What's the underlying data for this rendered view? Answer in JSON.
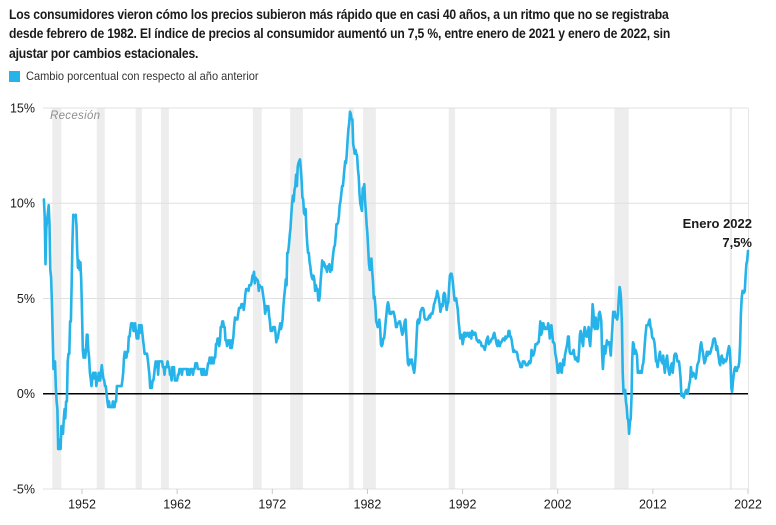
{
  "headline": {
    "lines": [
      "Los consumidores vieron cómo los precios subieron más rápido que en casi 40 años, a un ritmo que no se registraba",
      "desde febrero de 1982. El índice de precios al consumidor aumentó un 7,5 %, entre enero de 2021 y enero de 2022, sin",
      "ajustar por cambios estacionales."
    ]
  },
  "legend": {
    "label": "Cambio porcentual con respecto al año anterior",
    "swatch_color": "#25b3e9"
  },
  "chart_data": {
    "type": "line",
    "title": "Los consumidores vieron cómo los precios subieron más rápido que en casi 40 años, a un ritmo que no se registraba desde febrero de 1982. El índice de precios al consumidor aumentó un 7,5 %, entre enero de 2021 y enero de 2022, sin ajustar por cambios estacionales.",
    "xlabel": "",
    "ylabel": "Cambio porcentual con respecto al año anterior",
    "unit": "%",
    "ylim": [
      -5,
      15
    ],
    "xlim": [
      1947.9,
      2022.3
    ],
    "grid": true,
    "legend_position": "top-left",
    "recession_label": "Recesión",
    "recessions": [
      [
        1948.88,
        1949.83
      ],
      [
        1953.54,
        1954.38
      ],
      [
        1957.63,
        1958.29
      ],
      [
        1960.29,
        1961.13
      ],
      [
        1969.96,
        1970.88
      ],
      [
        1973.88,
        1975.21
      ],
      [
        1980.04,
        1980.54
      ],
      [
        1981.54,
        1982.88
      ],
      [
        1990.54,
        1991.21
      ],
      [
        2001.21,
        2001.88
      ],
      [
        2007.96,
        2009.46
      ],
      [
        2020.08,
        2020.33
      ]
    ],
    "yticks": [
      {
        "value": 15,
        "label": "15%"
      },
      {
        "value": 10,
        "label": "10%"
      },
      {
        "value": 5,
        "label": "5%"
      },
      {
        "value": 0,
        "label": "0%"
      },
      {
        "value": -5,
        "label": "-5%"
      }
    ],
    "xticks": [
      {
        "year": 1952,
        "label": "1952"
      },
      {
        "year": 1962,
        "label": "1962"
      },
      {
        "year": 1972,
        "label": "1972"
      },
      {
        "year": 1982,
        "label": "1982"
      },
      {
        "year": 1992,
        "label": "1992"
      },
      {
        "year": 2002,
        "label": "2002"
      },
      {
        "year": 2012,
        "label": "2012"
      },
      {
        "year": 2022,
        "label": "2022"
      }
    ],
    "annotation": {
      "lines": [
        "Enero 2022",
        "7,5%"
      ],
      "year": 2022.0,
      "value": 7.5
    },
    "colors": {
      "line": "#25b3e9",
      "recession": "#ededed",
      "grid": "#e0e0e0",
      "zero_line": "#000000",
      "tick": "#c8c8c8"
    },
    "series": [
      {
        "name": "Cambio porcentual con respecto al año anterior",
        "x_start_year": 1948,
        "x_step_months": 1,
        "values": [
          10.2,
          9.3,
          6.8,
          8.7,
          9.1,
          9.5,
          9.9,
          8.9,
          6.5,
          6.1,
          4.8,
          3.0,
          1.3,
          1.3,
          1.7,
          0.4,
          -0.4,
          -0.8,
          -2.9,
          -2.9,
          -2.4,
          -2.9,
          -1.7,
          -2.1,
          -2.1,
          -1.3,
          -0.8,
          -1.3,
          -0.4,
          -0.4,
          1.7,
          2.1,
          2.1,
          3.8,
          3.8,
          5.9,
          8.1,
          9.4,
          9.3,
          9.3,
          9.4,
          8.8,
          7.5,
          6.6,
          7.0,
          6.5,
          6.9,
          6.0,
          4.3,
          2.3,
          1.9,
          2.3,
          1.9,
          2.3,
          3.1,
          3.1,
          2.3,
          1.9,
          1.1,
          0.8,
          0.4,
          0.8,
          1.1,
          0.8,
          1.1,
          1.1,
          0.4,
          0.7,
          0.7,
          1.1,
          0.7,
          0.7,
          1.1,
          1.5,
          1.1,
          0.8,
          0.7,
          0.4,
          0.4,
          0.0,
          -0.4,
          -0.7,
          -0.4,
          -0.7,
          -0.7,
          -0.7,
          -0.7,
          -0.4,
          -0.7,
          -0.7,
          -0.4,
          -0.4,
          0.4,
          0.4,
          0.4,
          0.4,
          0.4,
          0.4,
          0.4,
          0.7,
          1.1,
          1.9,
          2.2,
          1.9,
          1.9,
          2.2,
          2.2,
          3.0,
          3.0,
          3.4,
          3.7,
          3.7,
          3.7,
          3.3,
          3.3,
          3.7,
          3.3,
          2.9,
          3.3,
          2.9,
          3.6,
          3.2,
          3.6,
          3.6,
          3.2,
          2.8,
          2.5,
          2.1,
          2.1,
          2.1,
          2.1,
          1.8,
          1.4,
          1.0,
          0.3,
          0.3,
          0.3,
          0.7,
          0.7,
          1.0,
          1.4,
          1.7,
          1.4,
          1.7,
          1.0,
          1.7,
          1.7,
          1.7,
          1.7,
          1.7,
          1.4,
          1.4,
          1.0,
          1.4,
          1.4,
          1.4,
          1.7,
          1.4,
          1.4,
          1.0,
          1.0,
          0.7,
          1.4,
          1.0,
          1.4,
          0.7,
          0.7,
          0.7,
          0.7,
          1.0,
          1.0,
          1.3,
          1.3,
          1.3,
          1.0,
          1.3,
          1.3,
          1.3,
          1.3,
          1.3,
          1.3,
          1.0,
          1.3,
          1.0,
          1.0,
          1.3,
          1.3,
          1.3,
          1.0,
          1.3,
          1.3,
          1.6,
          1.6,
          1.6,
          1.3,
          1.3,
          1.3,
          1.3,
          1.3,
          1.0,
          1.3,
          1.0,
          1.3,
          1.0,
          1.0,
          1.0,
          1.3,
          1.6,
          1.6,
          1.9,
          1.6,
          1.9,
          1.6,
          1.9,
          1.6,
          1.9,
          1.9,
          2.6,
          2.6,
          2.9,
          2.9,
          2.5,
          2.8,
          3.5,
          3.5,
          3.8,
          3.8,
          3.5,
          3.5,
          2.8,
          2.8,
          2.5,
          2.8,
          2.8,
          2.8,
          2.4,
          2.8,
          2.4,
          2.7,
          3.0,
          3.6,
          4.0,
          3.9,
          3.9,
          3.9,
          4.2,
          4.5,
          4.5,
          4.5,
          4.7,
          4.7,
          4.7,
          4.4,
          4.7,
          5.2,
          5.5,
          5.5,
          5.5,
          5.4,
          5.7,
          5.7,
          5.7,
          5.9,
          6.2,
          6.2,
          6.4,
          5.8,
          6.1,
          6.0,
          6.0,
          5.9,
          5.4,
          5.7,
          5.6,
          5.6,
          5.6,
          5.3,
          5.0,
          4.7,
          4.2,
          4.4,
          4.6,
          4.4,
          4.6,
          4.1,
          3.8,
          3.3,
          3.3,
          3.3,
          3.5,
          3.5,
          3.5,
          3.2,
          2.7,
          2.9,
          2.9,
          3.2,
          3.4,
          3.7,
          3.4,
          3.6,
          3.9,
          4.6,
          5.1,
          5.5,
          6.0,
          5.7,
          7.4,
          7.4,
          7.8,
          8.3,
          8.7,
          9.4,
          10.0,
          10.4,
          10.1,
          10.7,
          10.9,
          11.5,
          10.9,
          11.9,
          12.1,
          12.2,
          12.3,
          11.8,
          11.2,
          10.3,
          10.2,
          9.5,
          9.4,
          9.7,
          8.6,
          7.9,
          7.4,
          7.4,
          6.9,
          6.7,
          6.3,
          6.1,
          6.0,
          6.2,
          6.0,
          5.4,
          5.7,
          5.5,
          5.5,
          4.9,
          4.9,
          5.2,
          5.9,
          6.4,
          7.0,
          6.7,
          6.9,
          6.8,
          6.6,
          6.6,
          6.4,
          6.7,
          6.7,
          6.8,
          6.4,
          6.6,
          6.5,
          7.0,
          7.4,
          7.7,
          7.8,
          8.3,
          8.9,
          8.9,
          9.0,
          9.3,
          9.9,
          10.1,
          10.5,
          10.9,
          10.9,
          11.3,
          11.8,
          12.2,
          12.1,
          12.6,
          13.3,
          13.9,
          14.2,
          14.8,
          14.7,
          14.4,
          14.4,
          13.1,
          12.9,
          12.6,
          12.8,
          12.6,
          12.5,
          11.8,
          11.4,
          10.5,
          10.0,
          9.8,
          9.6,
          10.8,
          10.8,
          11.0,
          10.1,
          9.6,
          8.9,
          8.4,
          7.6,
          6.8,
          6.5,
          6.7,
          7.1,
          6.4,
          5.9,
          5.0,
          5.1,
          4.6,
          3.8,
          3.7,
          3.5,
          3.6,
          3.9,
          3.5,
          2.6,
          2.5,
          2.6,
          2.9,
          2.9,
          3.3,
          3.8,
          4.2,
          4.6,
          4.8,
          4.6,
          4.2,
          4.2,
          4.2,
          4.3,
          4.3,
          4.3,
          4.1,
          3.9,
          3.5,
          3.5,
          3.7,
          3.7,
          3.8,
          3.8,
          3.6,
          3.3,
          3.1,
          3.2,
          3.5,
          3.8,
          3.9,
          3.1,
          2.3,
          1.6,
          1.5,
          1.8,
          1.6,
          1.6,
          1.8,
          1.5,
          1.3,
          1.1,
          1.5,
          2.1,
          3.0,
          3.8,
          3.9,
          3.7,
          3.9,
          4.3,
          4.4,
          4.5,
          4.5,
          4.4,
          4.0,
          3.9,
          3.9,
          3.9,
          3.9,
          4.0,
          4.1,
          4.0,
          4.2,
          4.2,
          4.2,
          4.4,
          4.7,
          4.8,
          5.0,
          5.1,
          5.4,
          5.2,
          5.0,
          4.7,
          4.3,
          4.5,
          4.7,
          4.6,
          5.2,
          5.3,
          5.2,
          4.7,
          4.4,
          4.7,
          4.8,
          5.6,
          6.2,
          6.3,
          6.3,
          6.1,
          5.7,
          5.3,
          4.9,
          4.9,
          5.0,
          4.7,
          4.4,
          3.8,
          3.4,
          2.9,
          3.0,
          3.1,
          2.6,
          2.8,
          3.2,
          3.2,
          3.0,
          3.1,
          3.2,
          3.1,
          3.0,
          3.2,
          3.0,
          2.9,
          3.3,
          3.2,
          3.1,
          3.2,
          3.2,
          3.0,
          2.8,
          2.8,
          2.7,
          2.8,
          2.7,
          2.7,
          2.5,
          2.5,
          2.5,
          2.4,
          2.3,
          2.5,
          2.8,
          2.9,
          3.0,
          2.6,
          2.7,
          2.7,
          2.8,
          2.9,
          2.9,
          3.1,
          3.2,
          3.0,
          2.8,
          2.6,
          2.5,
          2.8,
          2.6,
          2.5,
          2.7,
          2.7,
          2.8,
          2.9,
          2.9,
          2.8,
          3.0,
          2.9,
          3.0,
          3.0,
          3.3,
          3.3,
          3.0,
          3.0,
          2.8,
          2.5,
          2.2,
          2.3,
          2.2,
          2.2,
          2.2,
          2.1,
          1.8,
          1.7,
          1.6,
          1.4,
          1.4,
          1.4,
          1.7,
          1.7,
          1.7,
          1.6,
          1.5,
          1.5,
          1.5,
          1.6,
          1.7,
          1.6,
          1.7,
          2.3,
          2.1,
          2.0,
          2.1,
          2.3,
          2.6,
          2.6,
          2.6,
          2.7,
          2.7,
          3.2,
          3.8,
          3.1,
          3.2,
          3.7,
          3.7,
          3.4,
          3.5,
          3.4,
          3.4,
          3.4,
          3.7,
          3.5,
          2.9,
          3.3,
          3.6,
          3.2,
          2.7,
          2.7,
          2.6,
          2.1,
          1.9,
          1.6,
          1.1,
          1.1,
          1.5,
          1.6,
          1.2,
          1.1,
          1.5,
          1.8,
          1.5,
          2.0,
          2.2,
          2.4,
          2.6,
          3.0,
          3.0,
          2.2,
          2.1,
          2.1,
          2.1,
          2.2,
          2.3,
          2.0,
          1.8,
          1.9,
          1.9,
          1.7,
          1.7,
          2.3,
          3.1,
          3.3,
          3.0,
          2.7,
          2.5,
          3.2,
          3.5,
          3.3,
          3.0,
          3.0,
          3.1,
          3.5,
          2.8,
          2.5,
          3.2,
          3.6,
          4.7,
          4.3,
          3.5,
          3.4,
          4.0,
          3.6,
          3.4,
          3.5,
          4.2,
          4.3,
          4.1,
          3.8,
          2.1,
          1.3,
          2.0,
          2.5,
          2.1,
          2.4,
          2.8,
          2.6,
          2.7,
          2.7,
          2.4,
          2.0,
          2.8,
          3.5,
          4.3,
          4.1,
          4.3,
          4.0,
          4.0,
          3.9,
          4.2,
          5.0,
          5.6,
          5.4,
          4.9,
          3.7,
          1.1,
          0.1,
          0.0,
          0.2,
          -0.4,
          -0.7,
          -1.3,
          -1.4,
          -2.1,
          -1.5,
          -1.3,
          -0.2,
          1.8,
          2.7,
          2.6,
          2.1,
          2.3,
          2.2,
          2.0,
          1.1,
          1.2,
          1.1,
          1.1,
          1.2,
          1.1,
          1.5,
          1.6,
          2.1,
          2.7,
          3.2,
          3.6,
          3.6,
          3.6,
          3.8,
          3.9,
          3.5,
          3.4,
          3.0,
          2.9,
          2.9,
          2.7,
          2.3,
          1.7,
          1.7,
          1.4,
          1.7,
          2.0,
          2.2,
          1.8,
          1.7,
          1.6,
          2.0,
          1.5,
          1.1,
          1.4,
          1.8,
          2.0,
          1.5,
          1.2,
          1.0,
          1.2,
          1.5,
          1.6,
          1.1,
          1.5,
          2.0,
          2.1,
          2.1,
          2.0,
          1.7,
          1.7,
          1.7,
          1.3,
          0.8,
          -0.1,
          0.0,
          -0.1,
          -0.2,
          0.0,
          0.1,
          0.2,
          0.2,
          0.0,
          0.2,
          0.5,
          0.7,
          1.4,
          1.0,
          0.9,
          1.1,
          1.0,
          1.0,
          0.8,
          1.1,
          1.5,
          1.6,
          1.7,
          2.1,
          2.5,
          2.7,
          2.4,
          2.2,
          1.9,
          1.6,
          1.7,
          1.9,
          2.2,
          2.0,
          2.2,
          2.1,
          2.1,
          2.2,
          2.4,
          2.5,
          2.8,
          2.9,
          2.9,
          2.7,
          2.3,
          2.5,
          2.2,
          1.9,
          1.6,
          1.5,
          1.9,
          2.0,
          1.8,
          1.6,
          1.8,
          1.7,
          1.7,
          1.8,
          2.1,
          2.3,
          2.5,
          2.3,
          1.5,
          0.3,
          0.1,
          0.6,
          1.0,
          1.3,
          1.4,
          1.2,
          1.2,
          1.4,
          1.4,
          1.7,
          2.6,
          4.2,
          5.0,
          5.4,
          5.4,
          5.3,
          5.4,
          6.2,
          6.8,
          7.0,
          7.5
        ]
      }
    ]
  }
}
